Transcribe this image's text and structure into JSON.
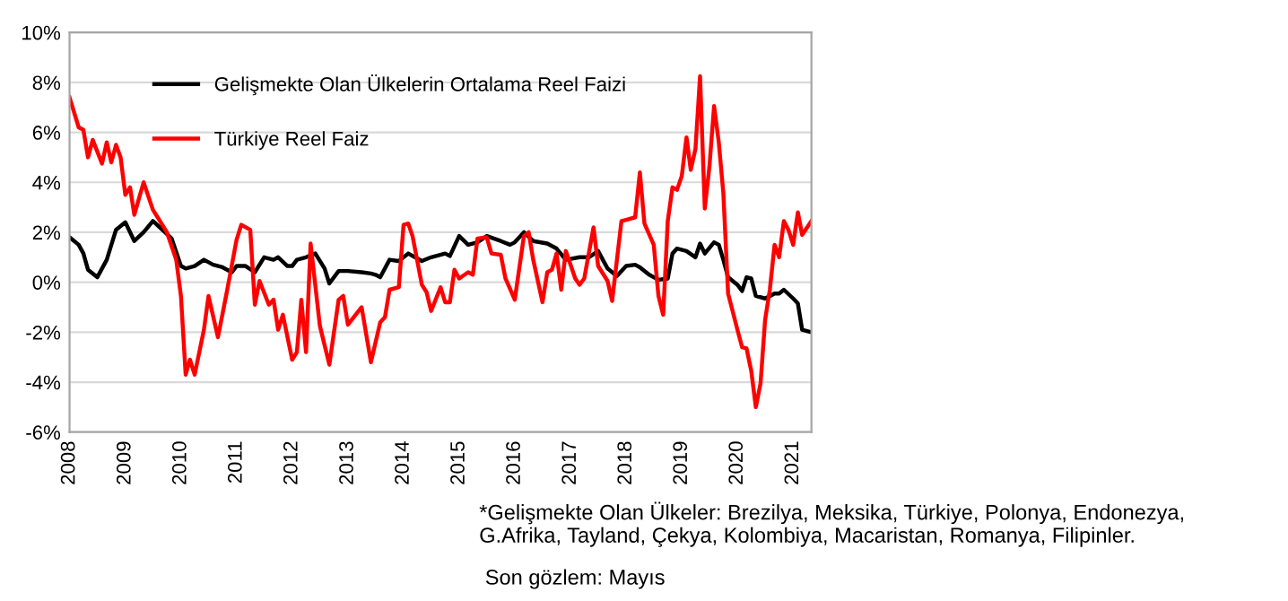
{
  "chart_data": {
    "type": "line",
    "series": [
      {
        "name": "Gelişmekte Olan Ülkelerin Ortalama Reel Faizi",
        "color": "#000000",
        "x": [
          "2008-01",
          "2008-03",
          "2008-04",
          "2008-05",
          "2008-07",
          "2008-09",
          "2008-11",
          "2009-01",
          "2009-03",
          "2009-05",
          "2009-07",
          "2009-09",
          "2009-11",
          "2010-01",
          "2010-02",
          "2010-04",
          "2010-06",
          "2010-08",
          "2010-10",
          "2010-12",
          "2011-01",
          "2011-03",
          "2011-05",
          "2011-07",
          "2011-09",
          "2011-10",
          "2011-12",
          "2012-01",
          "2012-02",
          "2012-04",
          "2012-06",
          "2012-08",
          "2012-09",
          "2012-11",
          "2013-01",
          "2013-04",
          "2013-06",
          "2013-07",
          "2013-08",
          "2013-10",
          "2013-12",
          "2014-02",
          "2014-05",
          "2014-07",
          "2014-10",
          "2014-11",
          "2015-01",
          "2015-03",
          "2015-05",
          "2015-07",
          "2015-10",
          "2015-12",
          "2016-01",
          "2016-03",
          "2016-05",
          "2016-08",
          "2016-10",
          "2016-12",
          "2017-03",
          "2017-05",
          "2017-07",
          "2017-09",
          "2017-11",
          "2018-01",
          "2018-03",
          "2018-04",
          "2018-06",
          "2018-08",
          "2018-10",
          "2018-11",
          "2018-12",
          "2019-02",
          "2019-04",
          "2019-05",
          "2019-06",
          "2019-08",
          "2019-09",
          "2019-10",
          "2019-11",
          "2020-01",
          "2020-02",
          "2020-03",
          "2020-04",
          "2020-05",
          "2020-07",
          "2020-09",
          "2020-10",
          "2020-11",
          "2021-01",
          "2021-02",
          "2021-03",
          "2021-05"
        ],
        "values": [
          1.8,
          1.5,
          1.15,
          0.5,
          0.2,
          0.9,
          2.1,
          2.4,
          1.65,
          2.0,
          2.45,
          2.1,
          1.75,
          0.65,
          0.55,
          0.65,
          0.9,
          0.7,
          0.6,
          0.4,
          0.65,
          0.65,
          0.4,
          1.0,
          0.9,
          1.0,
          0.65,
          0.65,
          0.9,
          1.0,
          1.15,
          0.55,
          -0.05,
          0.45,
          0.45,
          0.4,
          0.35,
          0.3,
          0.2,
          0.9,
          0.85,
          1.15,
          0.85,
          1.0,
          1.15,
          1.05,
          1.85,
          1.5,
          1.6,
          1.85,
          1.65,
          1.5,
          1.6,
          2.0,
          1.65,
          1.55,
          1.35,
          0.9,
          1.0,
          1.0,
          1.25,
          0.55,
          0.25,
          0.65,
          0.7,
          0.6,
          0.3,
          0.1,
          0.15,
          1.15,
          1.35,
          1.25,
          1.0,
          1.55,
          1.15,
          1.6,
          1.5,
          0.9,
          0.2,
          -0.1,
          -0.35,
          0.2,
          0.15,
          -0.55,
          -0.65,
          -0.45,
          -0.45,
          -0.3,
          -0.65,
          -0.85,
          -1.9,
          -2.0
        ]
      },
      {
        "name": "Türkiye Reel Faiz",
        "color": "#ff0000",
        "x": [
          "2008-01",
          "2008-03",
          "2008-04",
          "2008-05",
          "2008-06",
          "2008-08",
          "2008-09",
          "2008-10",
          "2008-11",
          "2008-12",
          "2009-01",
          "2009-02",
          "2009-03",
          "2009-05",
          "2009-07",
          "2009-08",
          "2009-10",
          "2009-12",
          "2010-01",
          "2010-02",
          "2010-03",
          "2010-04",
          "2010-06",
          "2010-07",
          "2010-09",
          "2010-11",
          "2011-01",
          "2011-02",
          "2011-04",
          "2011-05",
          "2011-06",
          "2011-08",
          "2011-09",
          "2011-10",
          "2011-11",
          "2012-01",
          "2012-02",
          "2012-03",
          "2012-04",
          "2012-05",
          "2012-07",
          "2012-09",
          "2012-11",
          "2012-12",
          "2013-01",
          "2013-04",
          "2013-06",
          "2013-08",
          "2013-09",
          "2013-10",
          "2013-12",
          "2014-01",
          "2014-02",
          "2014-03",
          "2014-05",
          "2014-06",
          "2014-07",
          "2014-09",
          "2014-10",
          "2014-11",
          "2014-12",
          "2015-01",
          "2015-03",
          "2015-04",
          "2015-05",
          "2015-07",
          "2015-08",
          "2015-10",
          "2015-11",
          "2016-01",
          "2016-03",
          "2016-04",
          "2016-05",
          "2016-07",
          "2016-08",
          "2016-09",
          "2016-10",
          "2016-11",
          "2016-12",
          "2017-02",
          "2017-03",
          "2017-04",
          "2017-06",
          "2017-07",
          "2017-09",
          "2017-10",
          "2017-12",
          "2018-01",
          "2018-03",
          "2018-04",
          "2018-05",
          "2018-07",
          "2018-08",
          "2018-09",
          "2018-10",
          "2018-11",
          "2018-12",
          "2019-01",
          "2019-02",
          "2019-03",
          "2019-04",
          "2019-05",
          "2019-06",
          "2019-07",
          "2019-08",
          "2019-09",
          "2019-10",
          "2019-11",
          "2020-01",
          "2020-02",
          "2020-03",
          "2020-04",
          "2020-05",
          "2020-06",
          "2020-07",
          "2020-08",
          "2020-09",
          "2020-10",
          "2020-11",
          "2020-12",
          "2021-01",
          "2021-02",
          "2021-03",
          "2021-05"
        ],
        "values": [
          7.4,
          6.2,
          6.1,
          5.0,
          5.7,
          4.75,
          5.6,
          4.8,
          5.5,
          5.0,
          3.5,
          3.8,
          2.7,
          4.0,
          2.9,
          2.6,
          2.0,
          0.9,
          -0.55,
          -3.7,
          -3.1,
          -3.7,
          -1.9,
          -0.55,
          -2.2,
          -0.3,
          1.7,
          2.3,
          2.1,
          -0.9,
          0.05,
          -0.9,
          -0.7,
          -1.9,
          -1.3,
          -3.1,
          -2.8,
          -0.7,
          -2.8,
          1.55,
          -1.75,
          -3.3,
          -0.7,
          -0.55,
          -1.7,
          -1.0,
          -3.2,
          -1.6,
          -1.4,
          -0.3,
          -0.2,
          2.3,
          2.35,
          1.85,
          -0.1,
          -0.4,
          -1.15,
          -0.2,
          -0.8,
          -0.8,
          0.5,
          0.15,
          0.4,
          0.3,
          1.75,
          1.8,
          1.15,
          1.1,
          0.15,
          -0.7,
          1.85,
          2.0,
          0.9,
          -0.8,
          0.4,
          0.5,
          1.15,
          -0.3,
          1.25,
          0.15,
          -0.1,
          0.15,
          2.2,
          0.65,
          0.05,
          -0.75,
          2.45,
          2.5,
          2.6,
          4.4,
          2.35,
          1.5,
          -0.55,
          -1.3,
          2.45,
          3.8,
          3.7,
          4.25,
          5.8,
          4.5,
          5.35,
          8.25,
          2.95,
          4.6,
          7.05,
          5.6,
          3.55,
          -0.45,
          -1.9,
          -2.6,
          -2.65,
          -3.55,
          -5.0,
          -4.05,
          -1.5,
          -0.3,
          1.5,
          1.0,
          2.45,
          2.1,
          1.5,
          2.8,
          1.9,
          2.45
        ]
      }
    ],
    "xlim": [
      "2008-01",
      "2021-05"
    ],
    "xticks": [
      {
        "value": "2008-01",
        "label": "2008"
      },
      {
        "value": "2009-01",
        "label": "2009"
      },
      {
        "value": "2010-01",
        "label": "2010"
      },
      {
        "value": "2011-01",
        "label": "2011"
      },
      {
        "value": "2012-01",
        "label": "2012"
      },
      {
        "value": "2013-01",
        "label": "2013"
      },
      {
        "value": "2014-01",
        "label": "2014"
      },
      {
        "value": "2015-01",
        "label": "2015"
      },
      {
        "value": "2016-01",
        "label": "2016"
      },
      {
        "value": "2017-01",
        "label": "2017"
      },
      {
        "value": "2018-01",
        "label": "2018"
      },
      {
        "value": "2019-01",
        "label": "2019"
      },
      {
        "value": "2020-01",
        "label": "2020"
      },
      {
        "value": "2021-01",
        "label": "2021"
      }
    ],
    "ylim": [
      -6,
      10
    ],
    "yticks": [
      {
        "value": -6,
        "label": "-6%"
      },
      {
        "value": -4,
        "label": "-4%"
      },
      {
        "value": -2,
        "label": "-2%"
      },
      {
        "value": 0,
        "label": "0%"
      },
      {
        "value": 2,
        "label": "2%"
      },
      {
        "value": 4,
        "label": "4%"
      },
      {
        "value": 6,
        "label": "6%"
      },
      {
        "value": 8,
        "label": "8%"
      },
      {
        "value": 10,
        "label": "10%"
      }
    ],
    "grid": "y",
    "legend": "top left",
    "line_style": "solid",
    "annotations": [
      "*Gelişmekte Olan Ülkeler: Brezilya, Meksika, Türkiye, Polonya, Endonezya,\nG.Afrika, Tayland, Çekya, Kolombiya, Macaristan, Romanya, Filipinler.",
      " Son gözlem: Mayıs"
    ]
  }
}
